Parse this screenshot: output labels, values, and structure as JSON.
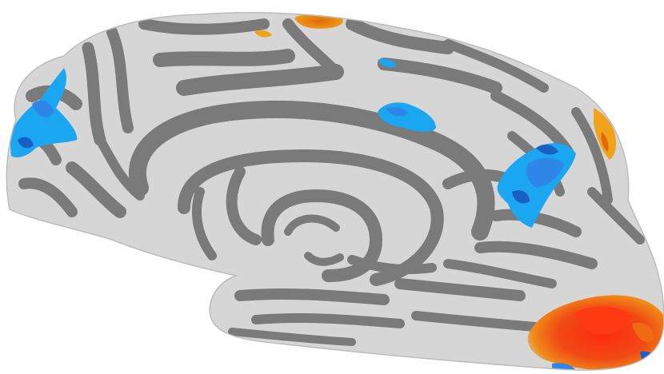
{
  "scene": {
    "subject": "inflated-cortical-surface-medial-view",
    "background_color": "#ffffff",
    "colors": {
      "gyri_light": "#d4d4d4",
      "sulci_dark": "#777777",
      "shade": "#9a9a9a",
      "positive_low": "#f2a51a",
      "positive_mid": "#f06a14",
      "positive_high": "#ee2a10",
      "negative_low": "#1aa6f0",
      "negative_mid": "#2f86e6",
      "negative_high": "#1a5fc4"
    },
    "overlay_clusters": [
      {
        "name": "orange-cluster-superior",
        "polarity": "positive"
      },
      {
        "name": "blue-cluster-frontal",
        "polarity": "negative"
      },
      {
        "name": "blue-cluster-cingulate",
        "polarity": "negative"
      },
      {
        "name": "blue-cluster-precuneus",
        "polarity": "negative"
      },
      {
        "name": "orange-cluster-parietal",
        "polarity": "positive"
      },
      {
        "name": "red-cluster-occipital",
        "polarity": "positive"
      }
    ]
  }
}
